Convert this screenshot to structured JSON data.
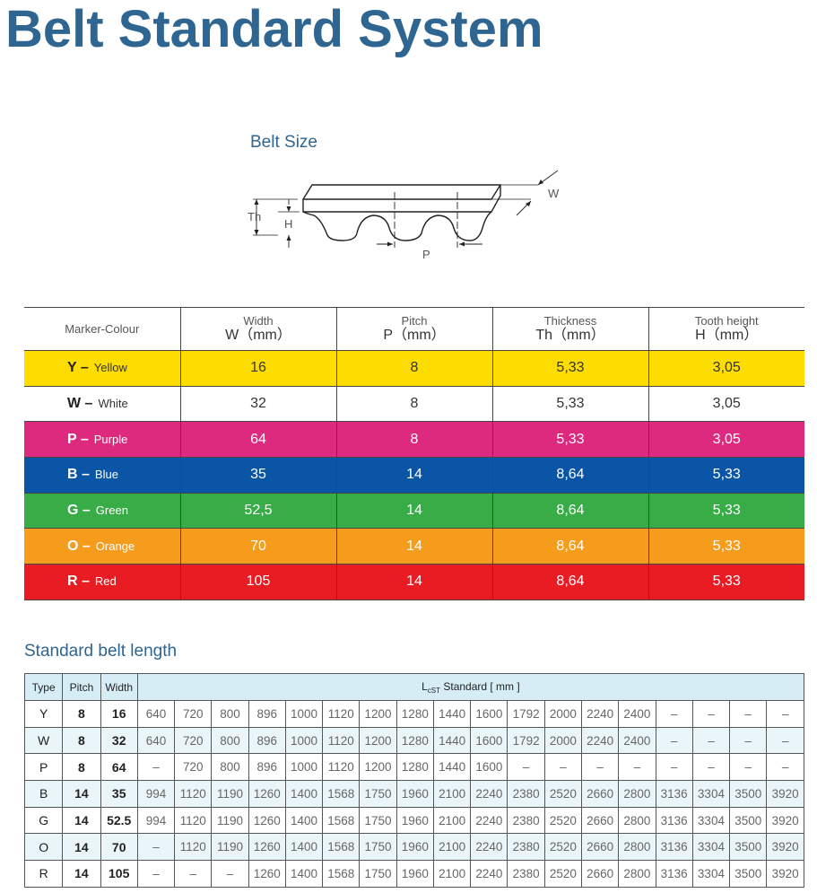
{
  "page_title": "Belt Standard System",
  "belt_size": {
    "heading": "Belt Size",
    "labels": {
      "w": "W",
      "th": "Th",
      "h": "H",
      "p": "P"
    }
  },
  "size_table": {
    "headers": {
      "marker": "Marker-Colour",
      "width_name": "Width",
      "width_unit": "W（mm）",
      "pitch_name": "Pitch",
      "pitch_unit": "P（mm）",
      "thickness_name": "Thickness",
      "thickness_unit": "Th（mm）",
      "tooth_name": "Tooth height",
      "tooth_unit": "H（mm）"
    },
    "rows": [
      {
        "letter": "Y –",
        "name": "Yellow",
        "color": "#fddc00",
        "width": "16",
        "pitch": "8",
        "thickness": "5,33",
        "tooth_height": "3,05"
      },
      {
        "letter": "W –",
        "name": "White",
        "color": "#ffffff",
        "width": "32",
        "pitch": "8",
        "thickness": "5,33",
        "tooth_height": "3,05"
      },
      {
        "letter": "P –",
        "name": "Purple",
        "color": "#de2a7e",
        "width": "64",
        "pitch": "8",
        "thickness": "5,33",
        "tooth_height": "3,05"
      },
      {
        "letter": "B –",
        "name": "Blue",
        "color": "#0a55a5",
        "width": "35",
        "pitch": "14",
        "thickness": "8,64",
        "tooth_height": "5,33"
      },
      {
        "letter": "G –",
        "name": "Green",
        "color": "#38ac46",
        "width": "52,5",
        "pitch": "14",
        "thickness": "8,64",
        "tooth_height": "5,33"
      },
      {
        "letter": "O –",
        "name": "Orange",
        "color": "#f59c1d",
        "width": "70",
        "pitch": "14",
        "thickness": "8,64",
        "tooth_height": "5,33"
      },
      {
        "letter": "R –",
        "name": "Red",
        "color": "#e91c24",
        "width": "105",
        "pitch": "14",
        "thickness": "8,64",
        "tooth_height": "5,33"
      }
    ]
  },
  "length_table": {
    "heading": "Standard belt length",
    "headers": {
      "type": "Type",
      "pitch": "Pitch",
      "width": "Width",
      "standard_prefix": "L",
      "standard_sub": "cST",
      "standard_suffix": " Standard [ mm ]"
    },
    "rows": [
      {
        "type": "Y",
        "pitch": "8",
        "width": "16",
        "lengths": [
          "640",
          "720",
          "800",
          "896",
          "1000",
          "1120",
          "1200",
          "1280",
          "1440",
          "1600",
          "1792",
          "2000",
          "2240",
          "2400",
          "–",
          "–",
          "–",
          "–"
        ]
      },
      {
        "type": "W",
        "pitch": "8",
        "width": "32",
        "lengths": [
          "640",
          "720",
          "800",
          "896",
          "1000",
          "1120",
          "1200",
          "1280",
          "1440",
          "1600",
          "1792",
          "2000",
          "2240",
          "2400",
          "–",
          "–",
          "–",
          "–"
        ]
      },
      {
        "type": "P",
        "pitch": "8",
        "width": "64",
        "lengths": [
          "–",
          "720",
          "800",
          "896",
          "1000",
          "1120",
          "1200",
          "1280",
          "1440",
          "1600",
          "–",
          "–",
          "–",
          "–",
          "–",
          "–",
          "–",
          "–"
        ]
      },
      {
        "type": "B",
        "pitch": "14",
        "width": "35",
        "lengths": [
          "994",
          "1120",
          "1190",
          "1260",
          "1400",
          "1568",
          "1750",
          "1960",
          "2100",
          "2240",
          "2380",
          "2520",
          "2660",
          "2800",
          "3136",
          "3304",
          "3500",
          "3920"
        ]
      },
      {
        "type": "G",
        "pitch": "14",
        "width": "52.5",
        "lengths": [
          "994",
          "1120",
          "1190",
          "1260",
          "1400",
          "1568",
          "1750",
          "1960",
          "2100",
          "2240",
          "2380",
          "2520",
          "2660",
          "2800",
          "3136",
          "3304",
          "3500",
          "3920"
        ]
      },
      {
        "type": "O",
        "pitch": "14",
        "width": "70",
        "lengths": [
          "–",
          "1120",
          "1190",
          "1260",
          "1400",
          "1568",
          "1750",
          "1960",
          "2100",
          "2240",
          "2380",
          "2520",
          "2660",
          "2800",
          "3136",
          "3304",
          "3500",
          "3920"
        ]
      },
      {
        "type": "R",
        "pitch": "14",
        "width": "105",
        "lengths": [
          "–",
          "–",
          "–",
          "1260",
          "1400",
          "1568",
          "1750",
          "1960",
          "2100",
          "2240",
          "2380",
          "2520",
          "2660",
          "2800",
          "3136",
          "3304",
          "3500",
          "3920"
        ]
      }
    ]
  }
}
